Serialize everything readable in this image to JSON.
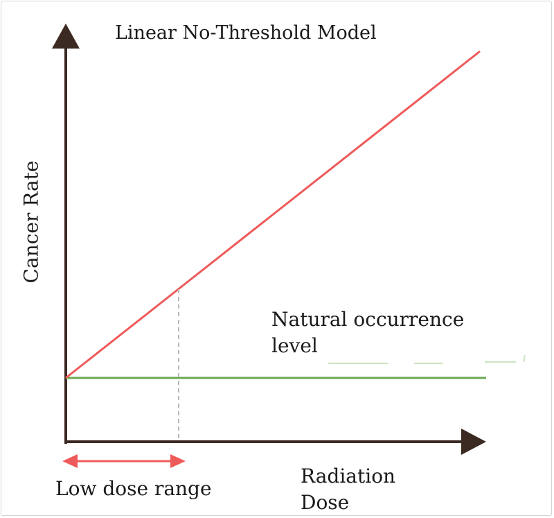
{
  "title": "Linear No-Threshold Model",
  "y_axis_label": "Cancer Rate",
  "x_axis_label": [
    "Radiation",
    "Dose"
  ],
  "natural_level_label": [
    "Natural occurrence",
    "level"
  ],
  "low_dose_label": "Low dose range",
  "colors": {
    "axis": "#3b2a22",
    "lnt_line": "#ee5a5a",
    "natural_line": "#6aa84f",
    "range_arrow": "#ee5a5a",
    "guide": "#b8b8b8"
  }
}
